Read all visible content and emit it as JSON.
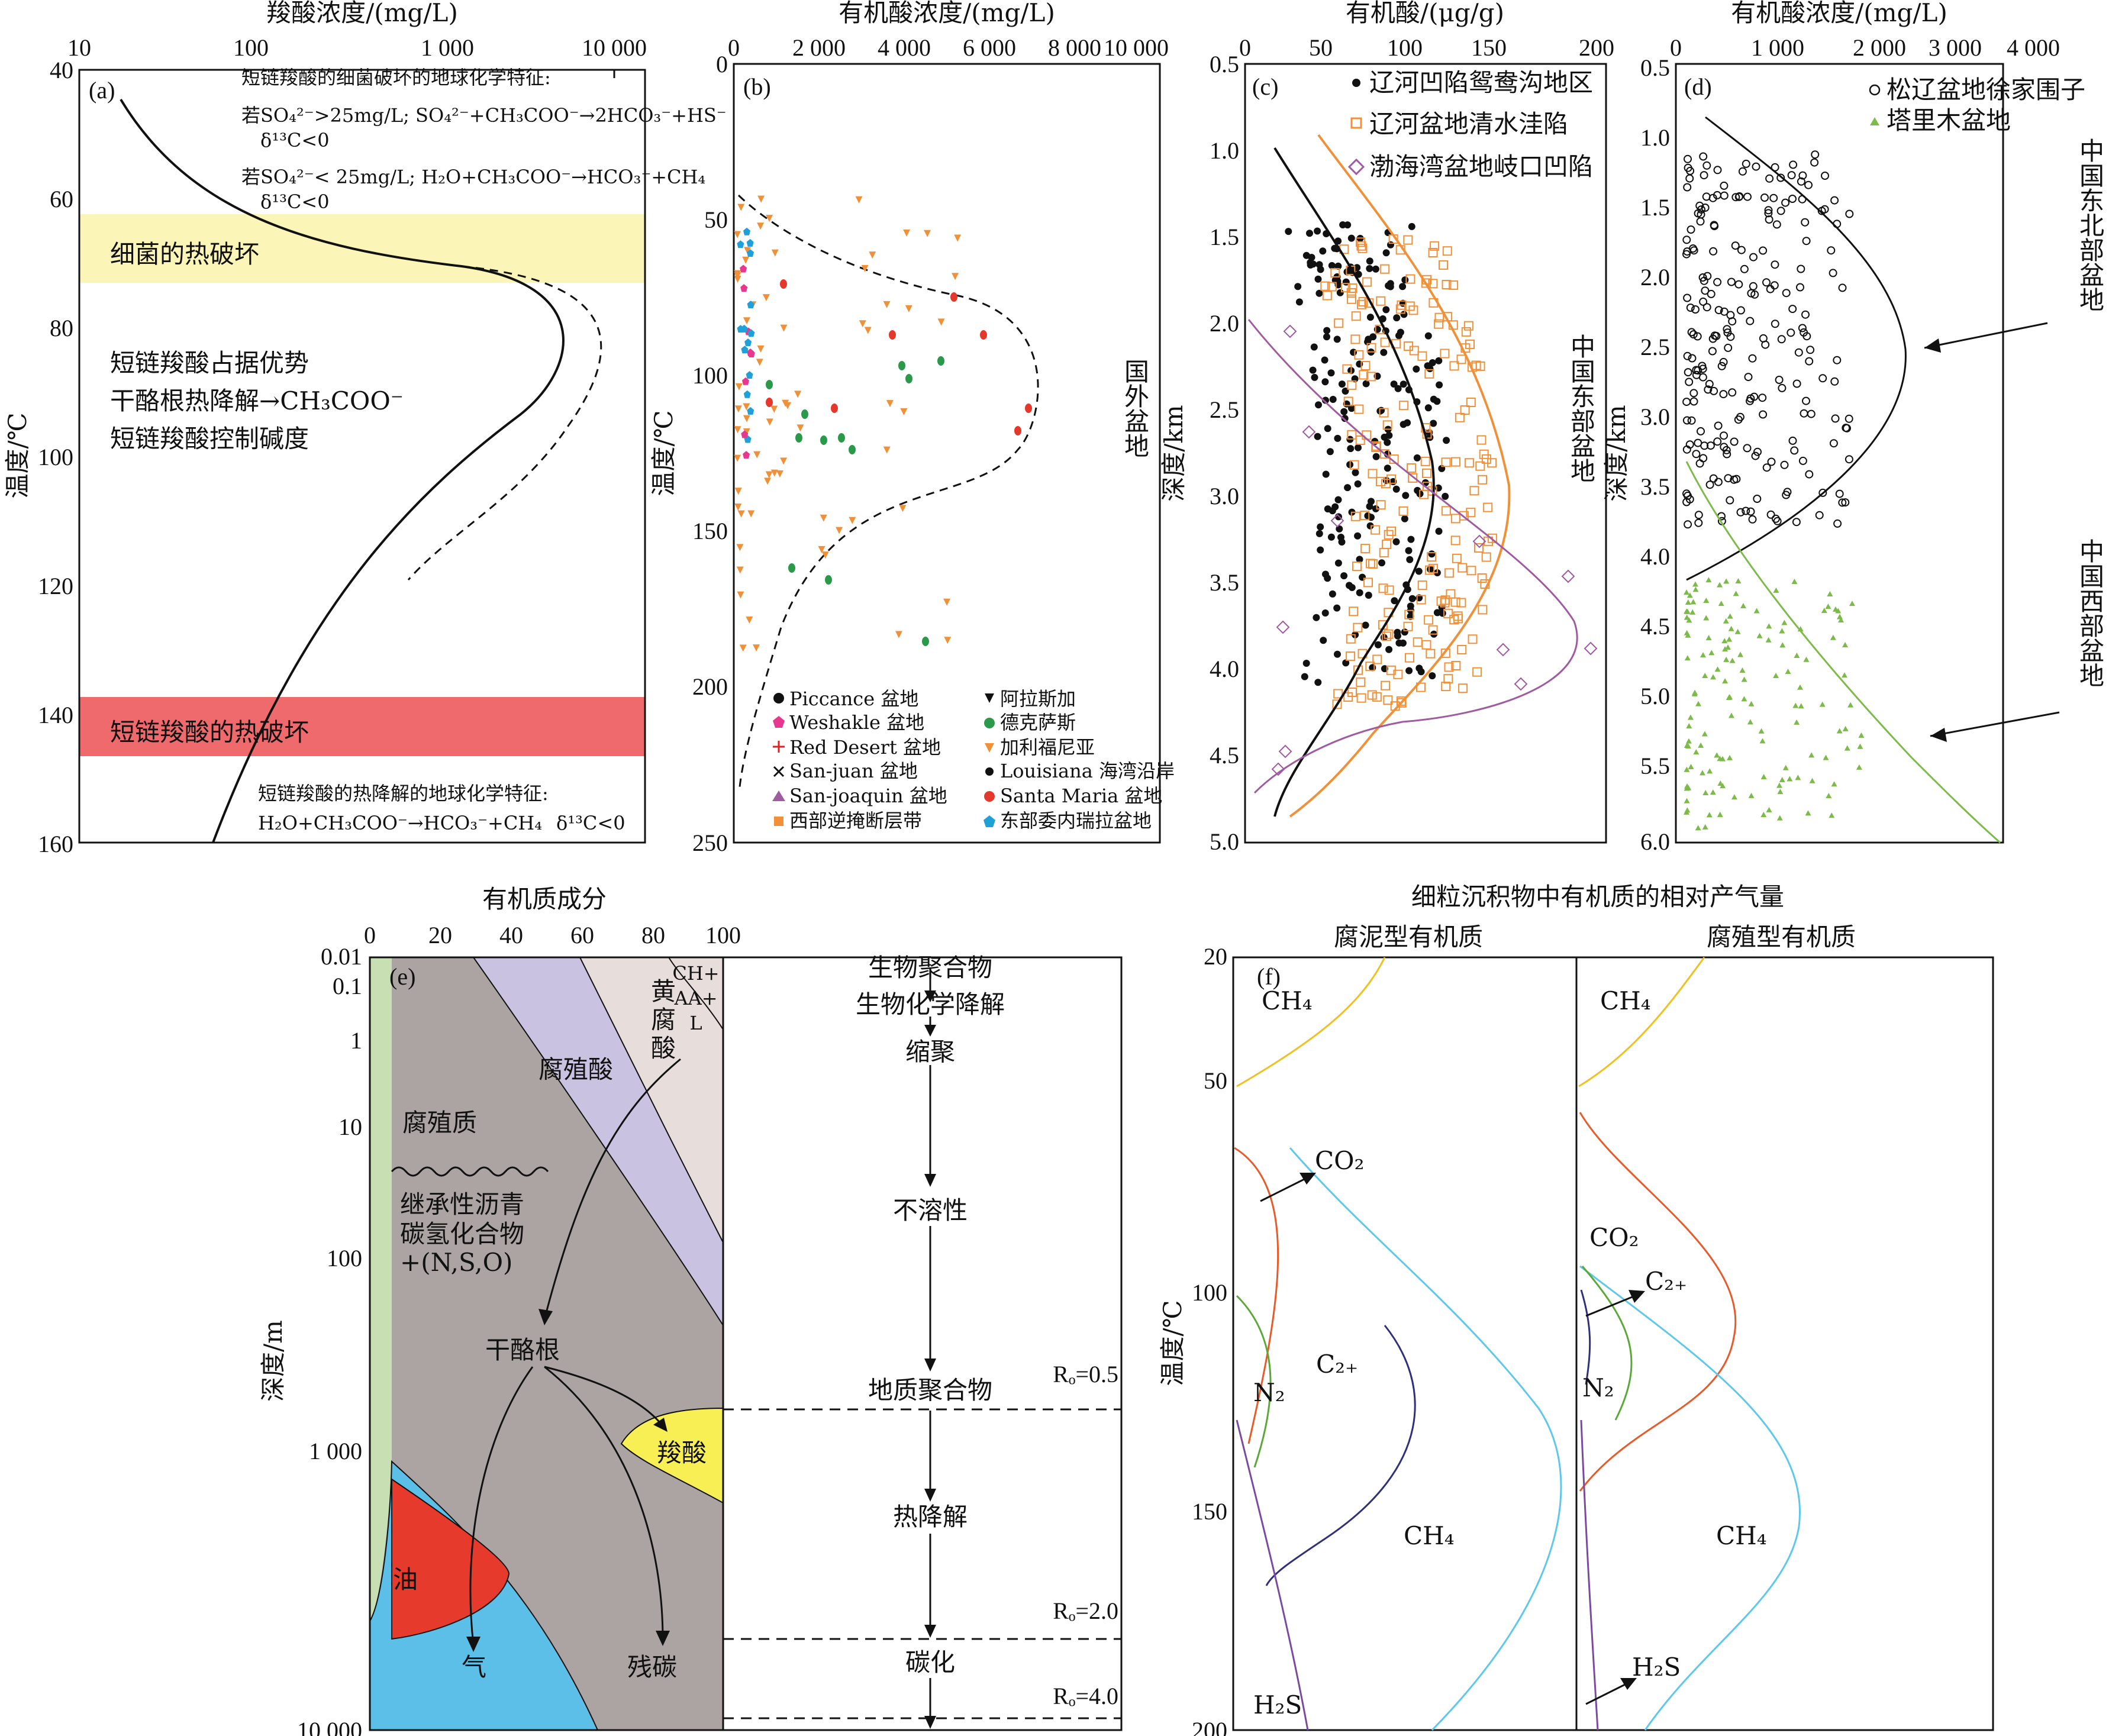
{
  "colors": {
    "yellow_band": "#fbf5b8",
    "red_band": "#ee6a6c",
    "orange": "#f0913a",
    "purple": "#a05ba0",
    "green": "#7cba49",
    "blue_fill": "#5cbfe8",
    "grey_fill": "#aba4a2",
    "lavender": "#c9c2e0",
    "pinkgrey": "#e7dddb",
    "lightgreen": "#c7dfb3",
    "oil_red": "#e53a2c",
    "acid_yellow": "#f7ef54"
  },
  "panel_a": {
    "label": "(a)",
    "top_axis_title": "羧酸浓度/(mg/L)",
    "y_axis_title": "温度/℃",
    "x_ticks": [
      "10",
      "100",
      "1 000",
      "10 000"
    ],
    "y_ticks": [
      "40",
      "60",
      "80",
      "100",
      "120",
      "140",
      "160"
    ],
    "note_bacterial_title": "短链羧酸的细菌破坏的地球化学特征:",
    "note_bacterial_1": "若SO₄²⁻>25mg/L; SO₄²⁻+CH₃COO⁻→2HCO₃⁻+HS⁻",
    "note_bacterial_1b": "δ¹³C<0",
    "note_bacterial_2": "若SO₄²⁻< 25mg/L; H₂O+CH₃COO⁻→HCO₃⁻+CH₄",
    "note_bacterial_2b": "δ¹³C<0",
    "band_bacterial": "细菌的热破坏",
    "dominant_1": "短链羧酸占据优势",
    "dominant_2": "干酪根热降解→CH₃COO⁻",
    "dominant_3": "短链羧酸控制碱度",
    "band_thermal": "短链羧酸的热破坏",
    "note_thermal_title": "短链羧酸的热降解的地球化学特征:",
    "note_thermal_1": "H₂O+CH₃COO⁻→HCO₃⁻+CH₄",
    "note_thermal_1b": "δ¹³C<0"
  },
  "panel_b": {
    "label": "(b)",
    "top_axis_title": "有机酸浓度/(mg/L)",
    "y_axis_title": "温度/℃",
    "side_title": "国外盆地",
    "x_ticks": [
      "0",
      "2 000",
      "4 000",
      "6 000",
      "8 000",
      "10 000"
    ],
    "y_ticks": [
      "0",
      "50",
      "100",
      "150",
      "200",
      "250"
    ],
    "legend_left": [
      "Piccance 盆地",
      "Weshakle 盆地",
      "Red Desert 盆地",
      "San-juan 盆地",
      "San-joaquin 盆地",
      "西部逆掩断层带"
    ],
    "legend_right": [
      "阿拉斯加",
      "德克萨斯",
      "加利福尼亚",
      "Louisiana 海湾沿岸",
      "Santa Maria 盆地",
      "东部委内瑞拉盆地"
    ]
  },
  "panel_c": {
    "label": "(c)",
    "top_axis_title": "有机酸/(μg/g)",
    "y_axis_title": "深度/km",
    "side_title": "中国东部盆地",
    "x_ticks": [
      "0",
      "50",
      "100",
      "150",
      "200"
    ],
    "y_ticks": [
      "0.5",
      "1.0",
      "1.5",
      "2.0",
      "2.5",
      "3.0",
      "3.5",
      "4.0",
      "4.5",
      "5.0"
    ],
    "legend": [
      "辽河凹陷鸳鸯沟地区",
      "辽河盆地清水洼陷",
      "渤海湾盆地岐口凹陷"
    ]
  },
  "panel_d": {
    "label": "(d)",
    "top_axis_title": "有机酸浓度/(mg/L)",
    "y_axis_title": "深度/km",
    "x_ticks": [
      "0",
      "1 000",
      "2 000",
      "3 000",
      "4 000"
    ],
    "y_ticks": [
      "0.5",
      "1.0",
      "1.5",
      "2.0",
      "2.5",
      "3.0",
      "3.5",
      "4.0",
      "4.5",
      "5.0",
      "5.5",
      "6.0"
    ],
    "legend": [
      "松辽盆地徐家围子",
      "塔里木盆地"
    ],
    "annot_ne": "中国东北部盆地",
    "annot_w": "中国西部盆地"
  },
  "panel_e": {
    "label": "(e)",
    "top_axis_title": "有机质成分",
    "y_axis_title": "深度/m",
    "x_ticks": [
      "0",
      "20",
      "40",
      "60",
      "80",
      "100"
    ],
    "y_ticks": [
      "0.01",
      "0.1",
      "1",
      "10",
      "100",
      "1 000",
      "10 000"
    ],
    "humin": "腐殖质",
    "humic_acid": "腐殖酸",
    "fulvic_1": "黄",
    "fulvic_2": "腐",
    "fulvic_3": "酸",
    "chaal_1": "CH+",
    "chaal_2": "AA+",
    "chaal_3": "L",
    "bitumen_1": "继承性沥青",
    "bitumen_2": "碳氢化合物",
    "bitumen_3": "+(N,S,O)",
    "kerogen": "干酪根",
    "carboxylic": "羧酸",
    "oil": "油",
    "gas": "气",
    "residual": "残碳",
    "flow": [
      "生物聚合物",
      "生物化学降解",
      "缩聚",
      "不溶性",
      "地质聚合物",
      "热降解",
      "碳化"
    ],
    "ro_1": "Rₒ=0.5",
    "ro_2": "Rₒ=2.0",
    "ro_3": "Rₒ=4.0"
  },
  "panel_f": {
    "label": "(f)",
    "top_title": "细粒沉积物中有机质的相对产气量",
    "left_title": "腐泥型有机质",
    "right_title": "腐殖型有机质",
    "y_axis_title": "温度/℃",
    "y_ticks": [
      "20",
      "50",
      "100",
      "150",
      "200"
    ],
    "ch4": "CH₄",
    "co2": "CO₂",
    "c2": "C₂₊",
    "n2": "N₂",
    "h2s": "H₂S"
  }
}
